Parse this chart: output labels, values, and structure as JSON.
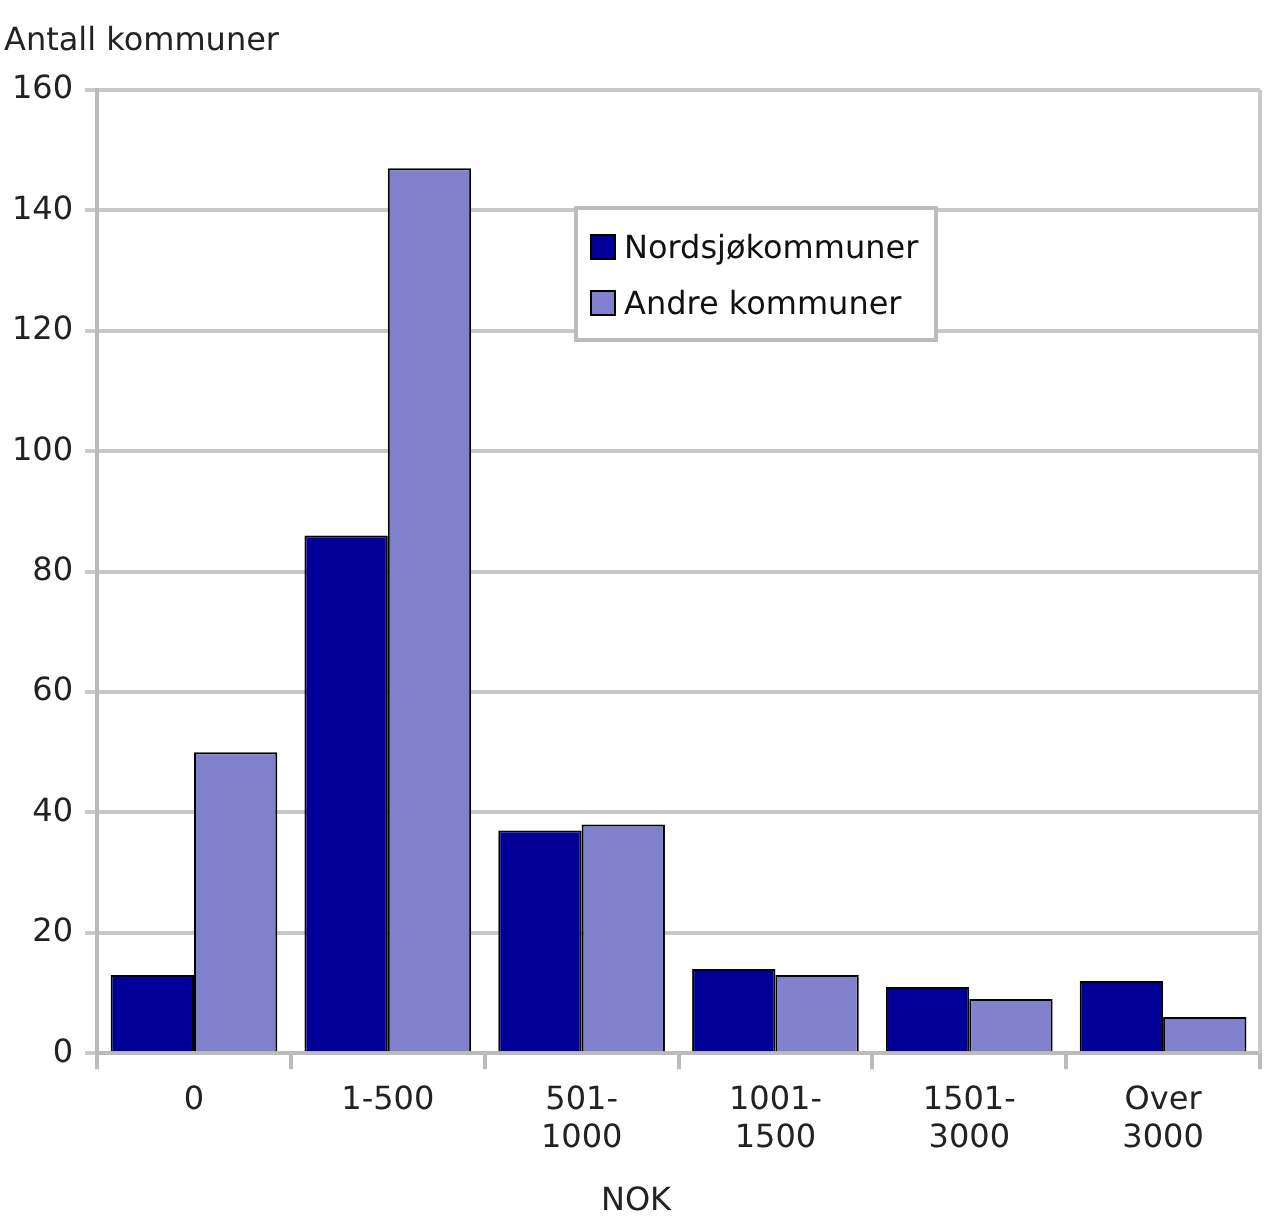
{
  "chart_data": {
    "type": "bar",
    "ylabel": "Antall kommuner",
    "xlabel": "NOK",
    "categories": [
      "0",
      "1-500",
      "501-1000",
      "1001-1500",
      "1501-3000",
      "Over 3000"
    ],
    "series": [
      {
        "name": "Nordsjøkommuner",
        "color": "#000099",
        "values": [
          13,
          86,
          37,
          14,
          11,
          12
        ]
      },
      {
        "name": "Andre kommuner",
        "color": "#8080cc",
        "values": [
          50,
          147,
          38,
          13,
          9,
          6
        ]
      }
    ],
    "ylim": [
      0,
      160
    ],
    "yticks": [
      0,
      20,
      40,
      60,
      80,
      100,
      120,
      140,
      160
    ],
    "grid": "y",
    "legend": "top right"
  }
}
